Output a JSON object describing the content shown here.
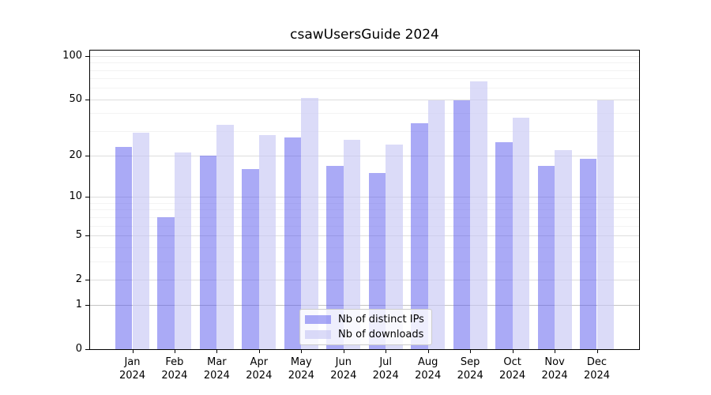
{
  "chart_data": {
    "type": "bar",
    "title": "csawUsersGuide 2024",
    "categories": [
      "Jan 2024",
      "Feb 2024",
      "Mar 2024",
      "Apr 2024",
      "May 2024",
      "Jun 2024",
      "Jul 2024",
      "Aug 2024",
      "Sep 2024",
      "Oct 2024",
      "Nov 2024",
      "Dec 2024"
    ],
    "series": [
      {
        "name": "Nb of distinct IPs",
        "values": [
          23,
          7,
          20,
          16,
          27,
          17,
          15,
          34,
          49,
          25,
          17,
          19
        ],
        "color": "#acacf7",
        "fill": "rgba(86,86,238,0.5)"
      },
      {
        "name": "Nb of downloads",
        "values": [
          29,
          21,
          33,
          28,
          51,
          26,
          24,
          49,
          67,
          37,
          22,
          49
        ],
        "color": "#dcdcf9",
        "fill": "rgba(200,200,244,0.65)"
      }
    ],
    "xlabel": "",
    "ylabel": "",
    "yscale": "log1p",
    "ylim": [
      0,
      108.8
    ],
    "yticks": [
      0,
      1,
      2,
      5,
      10,
      20,
      50,
      100
    ],
    "yticks_minor": [
      3,
      4,
      6,
      7,
      8,
      9,
      30,
      40,
      60,
      70,
      80,
      90
    ],
    "grid": true,
    "legend_position": "lower center"
  },
  "colors": {
    "background": "#ffffff",
    "axis": "#000000",
    "grid_major": "#dddddd",
    "grid_minor": "#f3f3f3",
    "text": "#000000",
    "legend_border": "#cccccc",
    "legend_bg": "rgba(255,255,255,0.8)"
  }
}
